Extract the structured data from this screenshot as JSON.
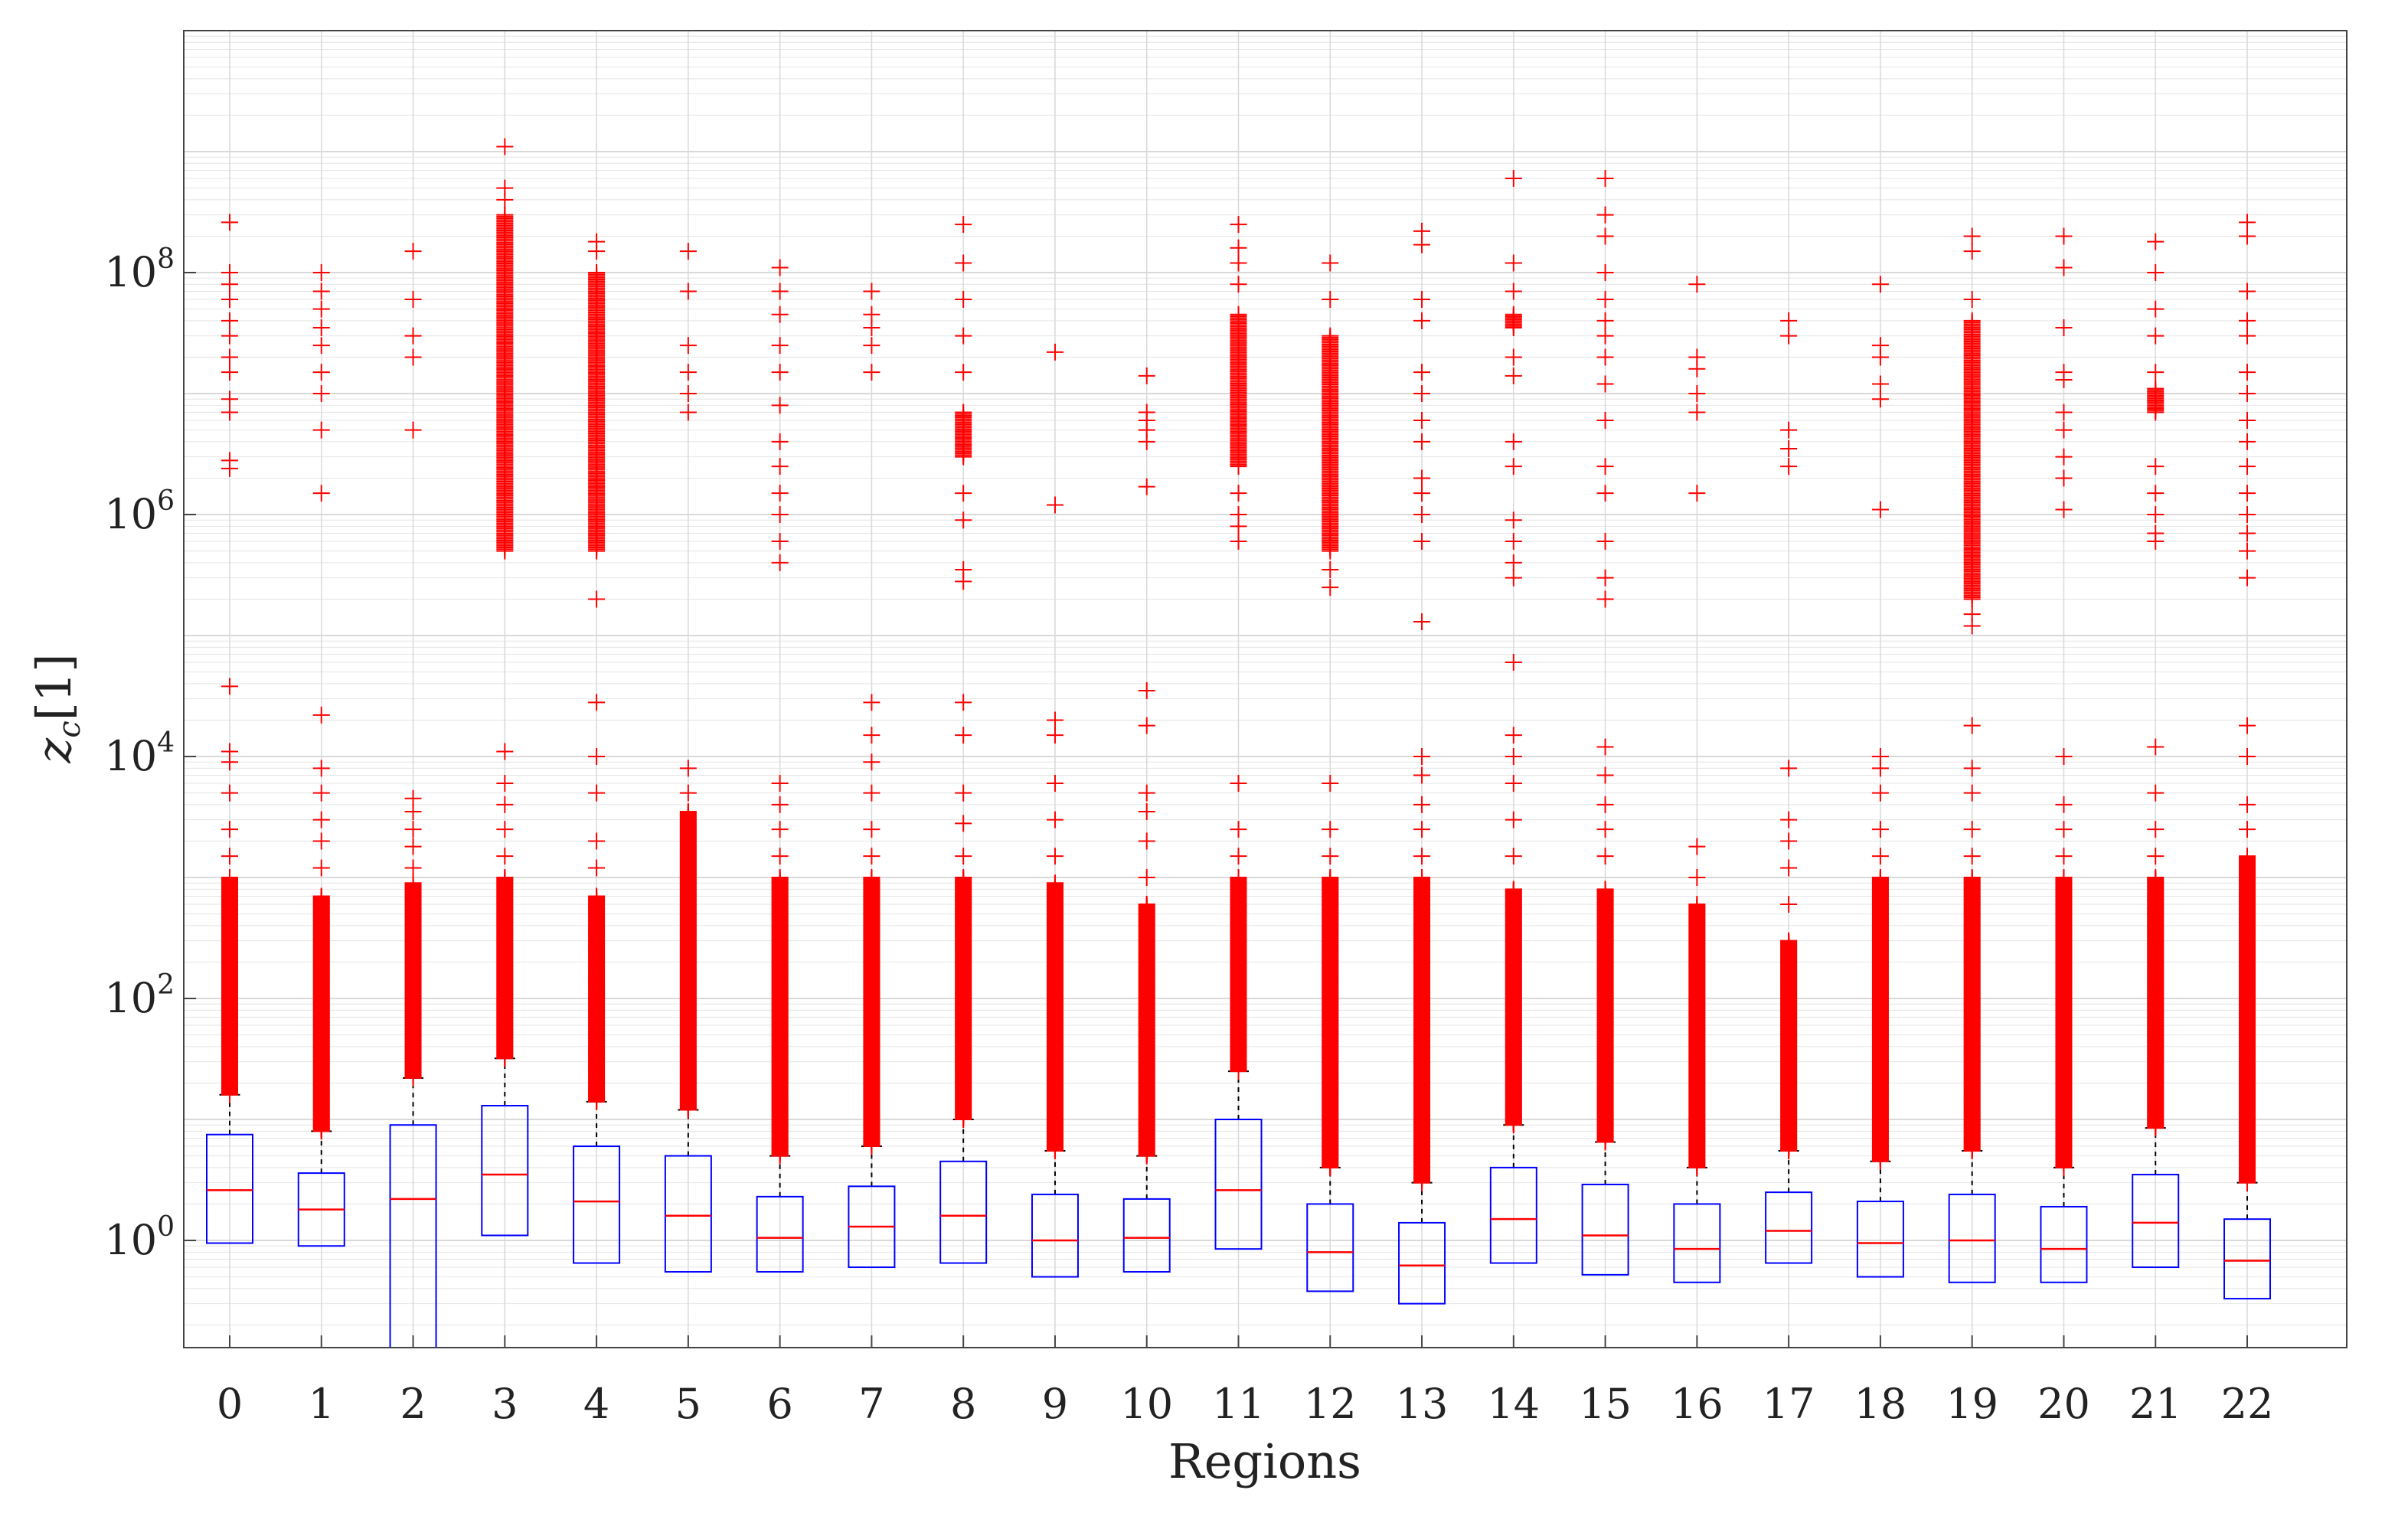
{
  "chart_data": {
    "type": "box",
    "title": "",
    "xlabel": "Regions",
    "ylabel_main": "z",
    "ylabel_sub": "c",
    "ylabel_suffix": "[1]",
    "yscale": "log",
    "ylim": [
      0.13,
      10000000000
    ],
    "grid": true,
    "minor_grid": true,
    "colors": {
      "box": "#0000ff",
      "median": "#ff0000",
      "outlier": "#ff0000",
      "whisker": "#000000",
      "grid": "#d9d9d9",
      "axis": "#444444"
    },
    "categories": [
      "0",
      "1",
      "2",
      "3",
      "4",
      "5",
      "6",
      "7",
      "8",
      "9",
      "10",
      "11",
      "12",
      "13",
      "14",
      "15",
      "16",
      "17",
      "18",
      "19",
      "20",
      "21",
      "22"
    ],
    "y_ticks": [
      {
        "value": 1,
        "base": "10",
        "exp": "0"
      },
      {
        "value": 100,
        "base": "10",
        "exp": "2"
      },
      {
        "value": 10000,
        "base": "10",
        "exp": "4"
      },
      {
        "value": 1000000,
        "base": "10",
        "exp": "6"
      },
      {
        "value": 100000000,
        "base": "10",
        "exp": "8"
      }
    ],
    "boxes": [
      {
        "region": "0",
        "q1": 0.95,
        "median": 2.6,
        "q3": 7.5,
        "whisker_high": 16
      },
      {
        "region": "1",
        "q1": 0.9,
        "median": 1.8,
        "q3": 3.6,
        "whisker_high": 8
      },
      {
        "region": "2",
        "q1": 0.13,
        "median": 2.2,
        "q3": 9.0,
        "whisker_high": 22
      },
      {
        "region": "3",
        "q1": 1.1,
        "median": 3.5,
        "q3": 13,
        "whisker_high": 32
      },
      {
        "region": "4",
        "q1": 0.65,
        "median": 2.1,
        "q3": 6.0,
        "whisker_high": 14
      },
      {
        "region": "5",
        "q1": 0.55,
        "median": 1.6,
        "q3": 5.0,
        "whisker_high": 12
      },
      {
        "region": "6",
        "q1": 0.55,
        "median": 1.05,
        "q3": 2.3,
        "whisker_high": 5
      },
      {
        "region": "7",
        "q1": 0.6,
        "median": 1.3,
        "q3": 2.8,
        "whisker_high": 6
      },
      {
        "region": "8",
        "q1": 0.65,
        "median": 1.6,
        "q3": 4.5,
        "whisker_high": 10
      },
      {
        "region": "9",
        "q1": 0.5,
        "median": 1.0,
        "q3": 2.4,
        "whisker_high": 5.5
      },
      {
        "region": "10",
        "q1": 0.55,
        "median": 1.05,
        "q3": 2.2,
        "whisker_high": 5
      },
      {
        "region": "11",
        "q1": 0.85,
        "median": 2.6,
        "q3": 10,
        "whisker_high": 25
      },
      {
        "region": "12",
        "q1": 0.38,
        "median": 0.8,
        "q3": 2.0,
        "whisker_high": 4
      },
      {
        "region": "13",
        "q1": 0.3,
        "median": 0.62,
        "q3": 1.4,
        "whisker_high": 3
      },
      {
        "region": "14",
        "q1": 0.65,
        "median": 1.5,
        "q3": 4.0,
        "whisker_high": 9
      },
      {
        "region": "15",
        "q1": 0.52,
        "median": 1.1,
        "q3": 2.9,
        "whisker_high": 6.5
      },
      {
        "region": "16",
        "q1": 0.45,
        "median": 0.85,
        "q3": 2.0,
        "whisker_high": 4
      },
      {
        "region": "17",
        "q1": 0.65,
        "median": 1.2,
        "q3": 2.5,
        "whisker_high": 5.5
      },
      {
        "region": "18",
        "q1": 0.5,
        "median": 0.95,
        "q3": 2.1,
        "whisker_high": 4.5
      },
      {
        "region": "19",
        "q1": 0.45,
        "median": 1.0,
        "q3": 2.4,
        "whisker_high": 5.5
      },
      {
        "region": "20",
        "q1": 0.45,
        "median": 0.85,
        "q3": 1.9,
        "whisker_high": 4
      },
      {
        "region": "21",
        "q1": 0.6,
        "median": 1.4,
        "q3": 3.5,
        "whisker_high": 8.5
      },
      {
        "region": "22",
        "q1": 0.33,
        "median": 0.68,
        "q3": 1.5,
        "whisker_high": 3
      }
    ],
    "outlier_groups": [
      {
        "region": "0",
        "dense_to": 1000,
        "sparse_low": [
          1500,
          2500,
          5000,
          9000,
          11000,
          38000
        ],
        "high": [
          2400000,
          2800000,
          7000000,
          9000000,
          15000000,
          20000000,
          30000000,
          40000000,
          60000000,
          80000000,
          100000000,
          260000000
        ]
      },
      {
        "region": "1",
        "dense_to": 700,
        "sparse_low": [
          1200,
          2000,
          3000,
          5000,
          8000,
          22000
        ],
        "high": [
          1500000,
          5000000,
          10000000,
          15000000,
          25000000,
          35000000,
          50000000,
          70000000,
          100000000
        ]
      },
      {
        "region": "2",
        "dense_to": 900,
        "sparse_low": [
          1200,
          1800,
          2500,
          3500,
          4500
        ],
        "high": [
          5000000,
          20000000,
          30000000,
          60000000,
          150000000
        ]
      },
      {
        "region": "3",
        "dense_to": 1000,
        "sparse_low": [
          1500,
          2500,
          4000,
          6000,
          11000
        ],
        "dense_high_from": 500000,
        "dense_high_to": 300000000,
        "high": [
          400000000,
          500000000,
          1100000000
        ]
      },
      {
        "region": "4",
        "dense_to": 700,
        "sparse_low": [
          1200,
          2000,
          5000,
          10000,
          28000
        ],
        "dense_high_from": 500000,
        "dense_high_to": 100000000,
        "high": [
          200000,
          150000000,
          180000000
        ]
      },
      {
        "region": "5",
        "dense_to": 3500,
        "sparse_low": [
          5000,
          8000
        ],
        "high": [
          7000000,
          10000000,
          15000000,
          25000000,
          70000000,
          150000000
        ]
      },
      {
        "region": "6",
        "dense_to": 1000,
        "sparse_low": [
          1500,
          2500,
          4000,
          6000
        ],
        "high": [
          400000,
          600000,
          1000000,
          1500000,
          2500000,
          4000000,
          8000000,
          15000000,
          25000000,
          45000000,
          70000000,
          110000000
        ]
      },
      {
        "region": "7",
        "dense_to": 1000,
        "sparse_low": [
          1500,
          2500,
          5000,
          9000,
          15000,
          28000
        ],
        "high": [
          15000000,
          25000000,
          35000000,
          45000000,
          70000000
        ]
      },
      {
        "region": "8",
        "dense_to": 1000,
        "sparse_low": [
          1500,
          2800,
          5000,
          15000,
          28000
        ],
        "dense_high_from": 3000000,
        "dense_high_to": 7000000,
        "high": [
          280000,
          350000,
          900000,
          1500000,
          15000000,
          30000000,
          60000000,
          120000000,
          250000000
        ]
      },
      {
        "region": "9",
        "dense_to": 900,
        "sparse_low": [
          1500,
          3000,
          6000,
          15000,
          20000
        ],
        "high": [
          1200000,
          22000000
        ]
      },
      {
        "region": "10",
        "dense_to": 600,
        "sparse_low": [
          1000,
          2000,
          3500,
          5000,
          18000,
          35000
        ],
        "high": [
          1700000,
          4000000,
          5000000,
          6000000,
          7000000,
          14000000
        ]
      },
      {
        "region": "11",
        "dense_to": 1000,
        "sparse_low": [
          1500,
          2500,
          6000
        ],
        "dense_high_from": 2500000,
        "dense_high_to": 45000000,
        "high": [
          600000,
          800000,
          1000000,
          1500000,
          80000000,
          120000000,
          160000000,
          250000000
        ]
      },
      {
        "region": "12",
        "dense_to": 1000,
        "sparse_low": [
          1500,
          2500,
          6000
        ],
        "dense_high_from": 500000,
        "dense_high_to": 30000000,
        "high": [
          250000,
          350000,
          60000000,
          120000000
        ]
      },
      {
        "region": "13",
        "dense_to": 1000,
        "sparse_low": [
          1500,
          2500,
          4000,
          7000,
          10000
        ],
        "high": [
          130000,
          600000,
          1000000,
          1500000,
          2000000,
          4000000,
          6000000,
          10000000,
          15000000,
          40000000,
          60000000,
          170000000,
          220000000
        ]
      },
      {
        "region": "14",
        "dense_to": 800,
        "sparse_low": [
          1500,
          3000,
          6000,
          10000,
          15000,
          60000
        ],
        "dense_high_from": 35000000,
        "dense_high_to": 45000000,
        "high": [
          300000,
          400000,
          600000,
          900000,
          2500000,
          4000000,
          14000000,
          20000000,
          70000000,
          120000000,
          600000000
        ]
      },
      {
        "region": "15",
        "dense_to": 800,
        "sparse_low": [
          1500,
          2500,
          4000,
          7000,
          12000
        ],
        "high": [
          200000,
          300000,
          600000,
          1500000,
          2500000,
          6000000,
          12000000,
          20000000,
          30000000,
          40000000,
          60000000,
          100000000,
          200000000,
          300000000,
          600000000
        ]
      },
      {
        "region": "16",
        "dense_to": 600,
        "sparse_low": [
          1000,
          1800
        ],
        "high": [
          1500000,
          7000000,
          10000000,
          16000000,
          20000000,
          80000000
        ]
      },
      {
        "region": "17",
        "dense_to": 300,
        "sparse_low": [
          600,
          1200,
          2000,
          3000,
          8000
        ],
        "high": [
          2500000,
          3500000,
          5000000,
          30000000,
          40000000
        ]
      },
      {
        "region": "18",
        "dense_to": 1000,
        "sparse_low": [
          1500,
          2500,
          5000,
          8000,
          10000
        ],
        "high": [
          1100000,
          9000000,
          12000000,
          20000000,
          25000000,
          80000000
        ]
      },
      {
        "region": "19",
        "dense_to": 1000,
        "sparse_low": [
          1500,
          2500,
          5000,
          8000,
          18000
        ],
        "dense_high_from": 200000,
        "dense_high_to": 40000000,
        "high": [
          120000,
          150000,
          60000000,
          150000000,
          200000000
        ]
      },
      {
        "region": "20",
        "dense_to": 1000,
        "sparse_low": [
          1500,
          2500,
          4000,
          10000
        ],
        "high": [
          1100000,
          2000000,
          3000000,
          5000000,
          7000000,
          13000000,
          15000000,
          35000000,
          110000000,
          200000000
        ]
      },
      {
        "region": "21",
        "dense_to": 1000,
        "sparse_low": [
          1500,
          2500,
          5000,
          12000
        ],
        "dense_high_from": 7000000,
        "dense_high_to": 11000000,
        "high": [
          600000,
          700000,
          1000000,
          1500000,
          2500000,
          15000000,
          30000000,
          50000000,
          100000000,
          180000000
        ]
      },
      {
        "region": "22",
        "dense_to": 1500,
        "sparse_low": [
          2500,
          4000,
          10000,
          18000
        ],
        "high": [
          300000,
          500000,
          700000,
          1000000,
          1500000,
          2500000,
          4000000,
          6000000,
          10000000,
          15000000,
          30000000,
          40000000,
          70000000,
          200000000,
          260000000
        ]
      }
    ]
  }
}
